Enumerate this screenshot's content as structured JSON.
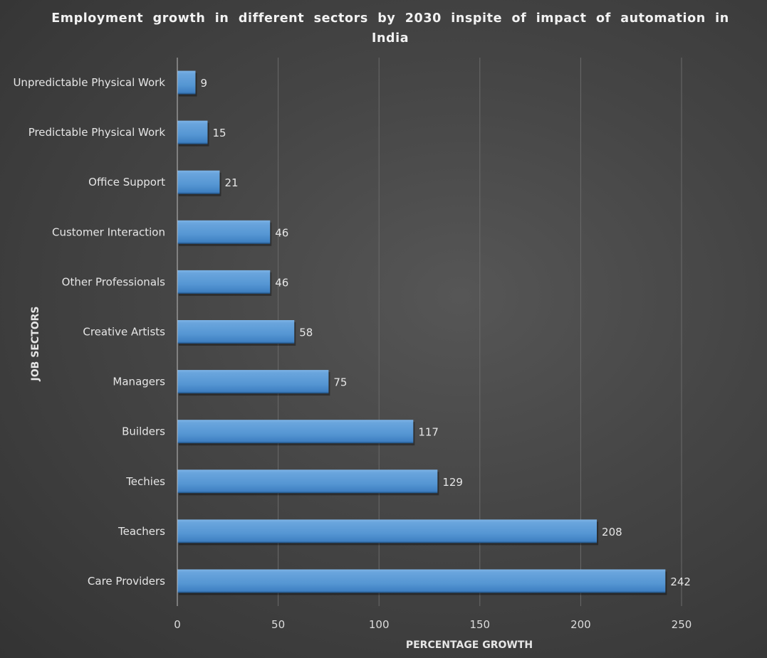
{
  "chart_data": {
    "type": "bar",
    "orientation": "horizontal",
    "title_lines": [
      "Employment  growth  in  different  sectors  by  2030  inspite  of  impact  of  automation  in",
      "India"
    ],
    "title": "Employment growth in different sectors by 2030 inspite of impact of automation in India",
    "xlabel": "PERCENTAGE GROWTH",
    "ylabel": "JOB SECTORS",
    "categories": [
      "Unpredictable Physical Work",
      "Predictable Physical Work",
      "Office Support",
      "Customer Interaction",
      "Other Professionals",
      "Creative Artists",
      "Managers",
      "Builders",
      "Techies",
      "Teachers",
      "Care Providers"
    ],
    "values": [
      9,
      15,
      21,
      46,
      46,
      58,
      75,
      117,
      129,
      208,
      242
    ],
    "xlim": [
      0,
      250
    ],
    "xticks": [
      "0",
      "50",
      "100",
      "150",
      "200",
      "250"
    ],
    "grid": true,
    "colors": {
      "bar": "#5b9bd5",
      "bar_top": "#6fa8dc",
      "bar_bottom": "#2e6ea6",
      "grid": "#6a6a6a",
      "axis": "#bdbdbd"
    }
  }
}
